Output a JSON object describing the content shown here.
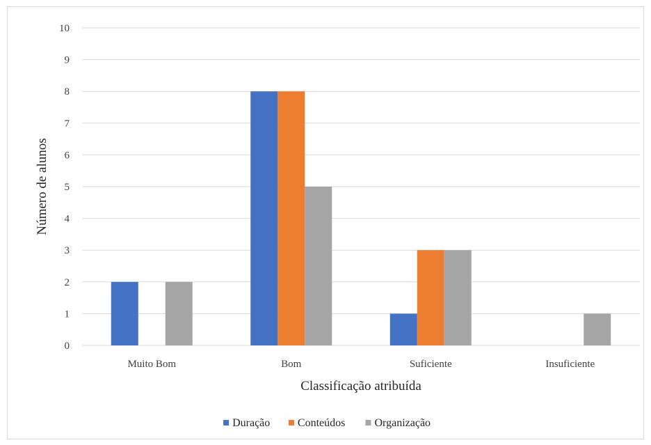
{
  "chart_data": {
    "type": "bar",
    "categories": [
      "Muito Bom",
      "Bom",
      "Suficiente",
      "Insuficiente"
    ],
    "series": [
      {
        "name": "Duração",
        "values": [
          2,
          8,
          1,
          0
        ],
        "color": "#4472C4"
      },
      {
        "name": "Conteúdos",
        "values": [
          0,
          8,
          3,
          0
        ],
        "color": "#ED7D31"
      },
      {
        "name": "Organização",
        "values": [
          2,
          5,
          3,
          1
        ],
        "color": "#A5A5A5"
      }
    ],
    "title": "",
    "xlabel": "Classificação atribuída",
    "ylabel": "Número de alunos",
    "ylim": [
      0,
      10
    ],
    "yticks": [
      "0",
      "1",
      "2",
      "3",
      "4",
      "5",
      "6",
      "7",
      "8",
      "9",
      "10"
    ],
    "grid": true,
    "legend_position": "bottom",
    "gridline_color": "#d9d9d9"
  }
}
